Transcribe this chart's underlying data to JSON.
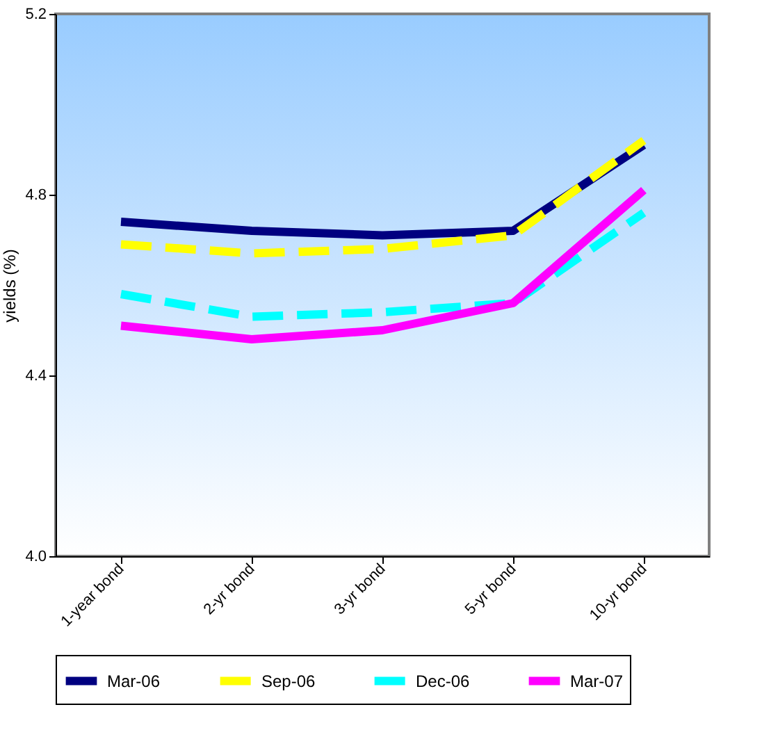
{
  "chart_data": {
    "type": "line",
    "ylabel": "yields (%)",
    "categories": [
      "1-year bond",
      "2-yr bond",
      "3-yr bond",
      "5-yr bond",
      "10-yr bond"
    ],
    "series": [
      {
        "name": "Mar-06",
        "color": "#000080",
        "line_style": "solid",
        "values": [
          4.74,
          4.72,
          4.71,
          4.72,
          4.91
        ]
      },
      {
        "name": "Sep-06",
        "color": "#ffff00",
        "line_style": "dashed",
        "values": [
          4.69,
          4.67,
          4.68,
          4.71,
          4.92
        ]
      },
      {
        "name": "Dec-06",
        "color": "#00ffff",
        "line_style": "dashed",
        "values": [
          4.58,
          4.53,
          4.54,
          4.56,
          4.76
        ]
      },
      {
        "name": "Mar-07",
        "color": "#ff00ff",
        "line_style": "solid",
        "values": [
          4.51,
          4.48,
          4.5,
          4.56,
          4.81
        ]
      }
    ],
    "ylim": [
      4.0,
      5.2
    ],
    "yticks": [
      {
        "value": 4.0,
        "label": "4.0"
      },
      4.4,
      4.8,
      5.2
    ],
    "grid": false,
    "legend": "bottom",
    "marker": "none"
  }
}
